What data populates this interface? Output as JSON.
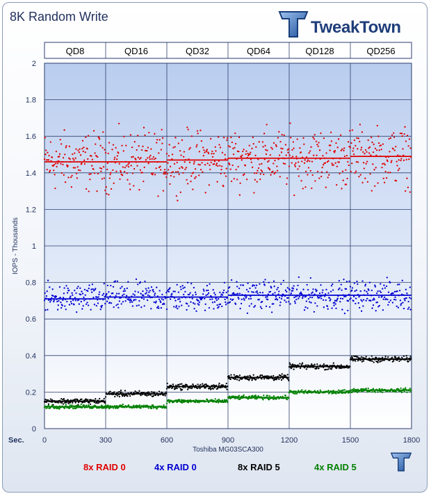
{
  "chart_data": {
    "type": "scatter",
    "title": "8K Random Write",
    "ylabel": "IOPS - Thousands",
    "xlabel": "Toshiba MG03SCA300",
    "x_axis_label_prefix": "Sec.",
    "xlim": [
      0,
      1800
    ],
    "ylim": [
      0,
      2
    ],
    "x_ticks": [
      "0",
      "300",
      "600",
      "900",
      "1200",
      "1500",
      "1800"
    ],
    "y_ticks": [
      "0",
      "0.2",
      "0.4",
      "0.6",
      "0.8",
      "1",
      "1.2",
      "1.4",
      "1.6",
      "1.8",
      "2"
    ],
    "queue_depths": [
      "QD8",
      "QD16",
      "QD32",
      "QD64",
      "QD128",
      "QD256"
    ],
    "grid": true,
    "series": [
      {
        "name": "8x RAID 0",
        "color": "#e00000",
        "segments": [
          1.46,
          1.46,
          1.47,
          1.48,
          1.48,
          1.49
        ],
        "spread": 0.12
      },
      {
        "name": "4x RAID 0",
        "color": "#0000d0",
        "segments": [
          0.71,
          0.72,
          0.72,
          0.73,
          0.73,
          0.73
        ],
        "spread": 0.06
      },
      {
        "name": "8x RAID 5",
        "color": "#000000",
        "segments": [
          0.15,
          0.19,
          0.23,
          0.28,
          0.34,
          0.38
        ],
        "spread": 0.012
      },
      {
        "name": "4x RAID 5",
        "color": "#008000",
        "segments": [
          0.12,
          0.12,
          0.15,
          0.17,
          0.2,
          0.21
        ],
        "spread": 0.008
      }
    ]
  },
  "brand": {
    "logo_text": "TweakTown"
  }
}
